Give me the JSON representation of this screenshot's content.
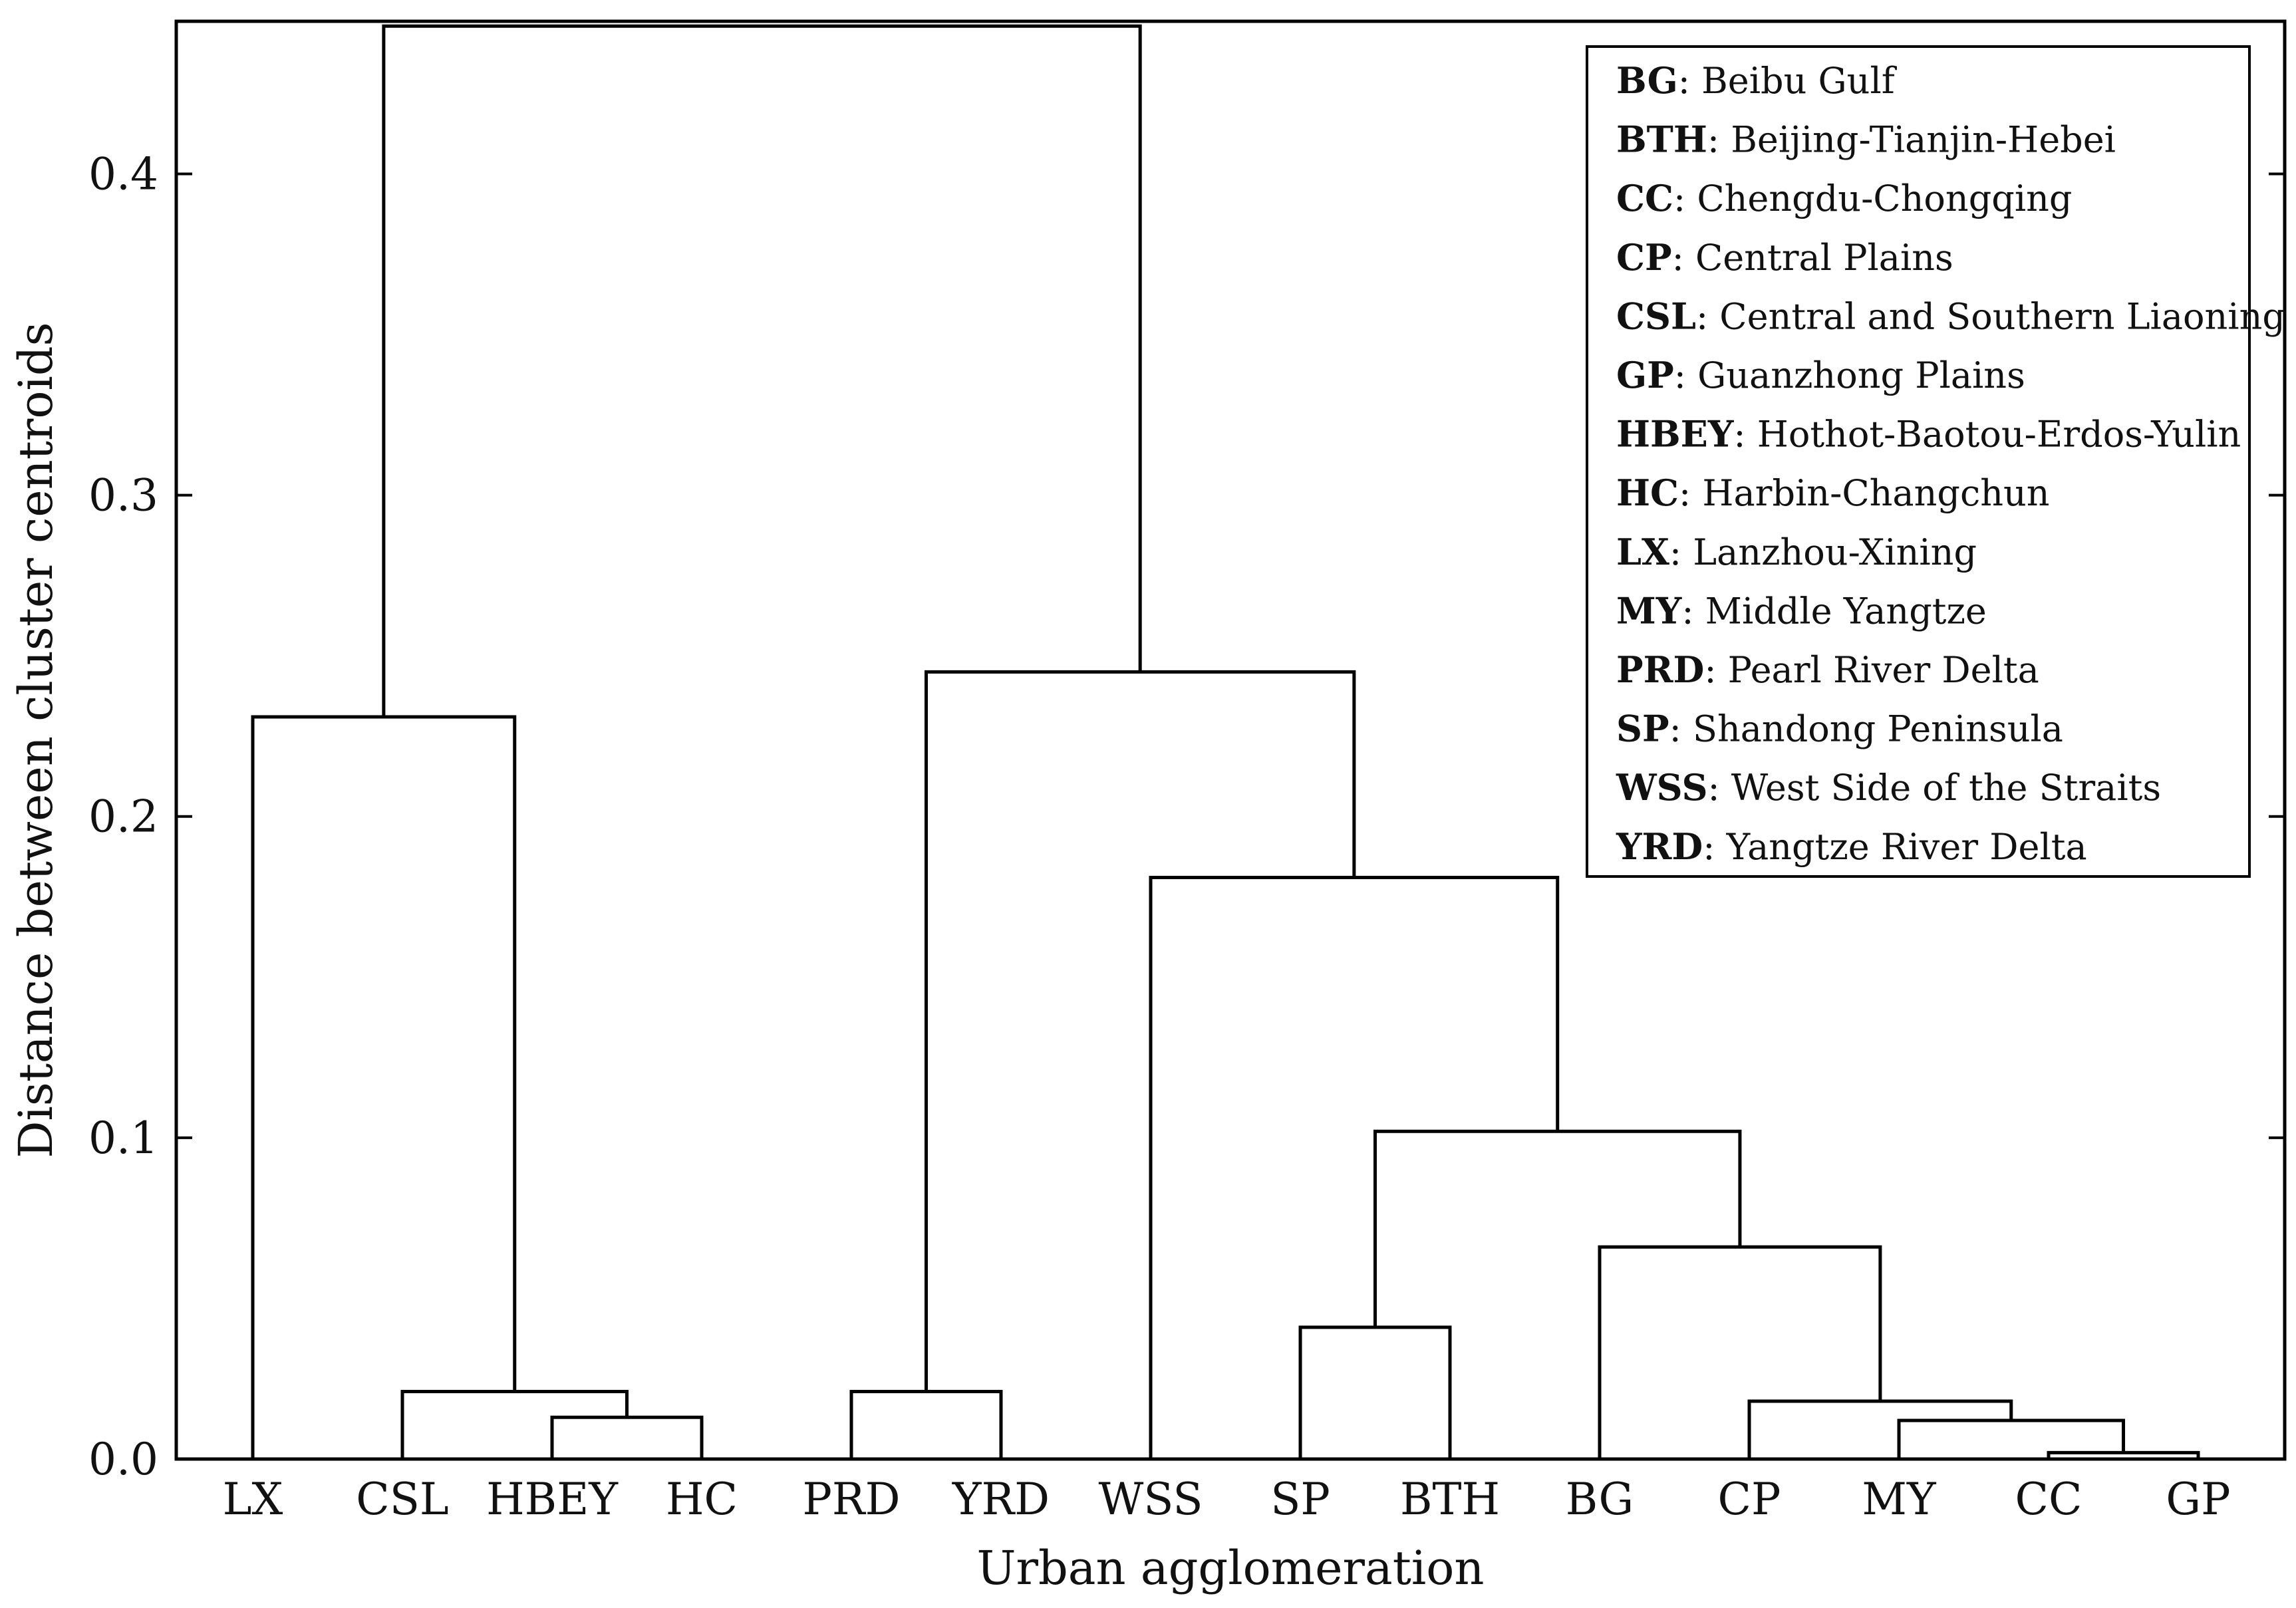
{
  "chart_data": {
    "type": "dendrogram",
    "xlabel": "Urban agglomeration",
    "ylabel": "Distance between cluster centroids",
    "ylim": [
      0,
      0.4475
    ],
    "yticks": [
      "0.0",
      "0.1",
      "0.2",
      "0.3",
      "0.4"
    ],
    "leaves": [
      "LX",
      "CSL",
      "HBEY",
      "HC",
      "PRD",
      "YRD",
      "WSS",
      "SP",
      "BTH",
      "BG",
      "CP",
      "MY",
      "CC",
      "GP"
    ],
    "merges": [
      {
        "left": "CC",
        "right": "GP",
        "height": 0.002
      },
      {
        "left": "MY",
        "right": "CC+GP",
        "height": 0.012
      },
      {
        "left": "CP",
        "right": "MY+CC+GP",
        "height": 0.018
      },
      {
        "left": "HBEY",
        "right": "HC",
        "height": 0.013
      },
      {
        "left": "CSL",
        "right": "HBEY+HC",
        "height": 0.021
      },
      {
        "left": "PRD",
        "right": "YRD",
        "height": 0.021
      },
      {
        "left": "SP",
        "right": "BTH",
        "height": 0.041
      },
      {
        "left": "BG",
        "right": "CP+MY+CC+GP",
        "height": 0.066
      },
      {
        "left": "SP+BTH",
        "right": "BG+CP+MY+CC+GP",
        "height": 0.102
      },
      {
        "left": "WSS",
        "right": "SP+BTH+BG+CP+MY+CC+GP",
        "height": 0.181
      },
      {
        "left": "LX",
        "right": "CSL+HBEY+HC",
        "height": 0.231
      },
      {
        "left": "PRD+YRD",
        "right": "WSS+SP+BTH+BG+CP+MY+CC+GP",
        "height": 0.245
      },
      {
        "left": "LX+CSL+HBEY+HC",
        "right": "PRD+YRD+WSS+SP+BTH+BG+CP+MY+CC+GP",
        "height": 0.446
      }
    ],
    "legend": [
      {
        "abbr": "BG",
        "name": ": Beibu Gulf"
      },
      {
        "abbr": "BTH",
        "name": ": Beijing-Tianjin-Hebei"
      },
      {
        "abbr": "CC",
        "name": ": Chengdu-Chongqing"
      },
      {
        "abbr": "CP",
        "name": ": Central Plains"
      },
      {
        "abbr": "CSL",
        "name": ": Central and Southern Liaoning"
      },
      {
        "abbr": "GP",
        "name": ": Guanzhong Plains"
      },
      {
        "abbr": "HBEY",
        "name": ": Hothot-Baotou-Erdos-Yulin"
      },
      {
        "abbr": "HC",
        "name": ": Harbin-Changchun"
      },
      {
        "abbr": "LX",
        "name": ": Lanzhou-Xining"
      },
      {
        "abbr": "MY",
        "name": ": Middle Yangtze"
      },
      {
        "abbr": "PRD",
        "name": ": Pearl River Delta"
      },
      {
        "abbr": "SP",
        "name": ": Shandong Peninsula"
      },
      {
        "abbr": "WSS",
        "name": ": West Side of the Straits"
      },
      {
        "abbr": "YRD",
        "name": ": Yangtze River Delta"
      }
    ],
    "legend_position": "top-right",
    "colors": {
      "line": "#000000",
      "background": "#ffffff"
    }
  }
}
